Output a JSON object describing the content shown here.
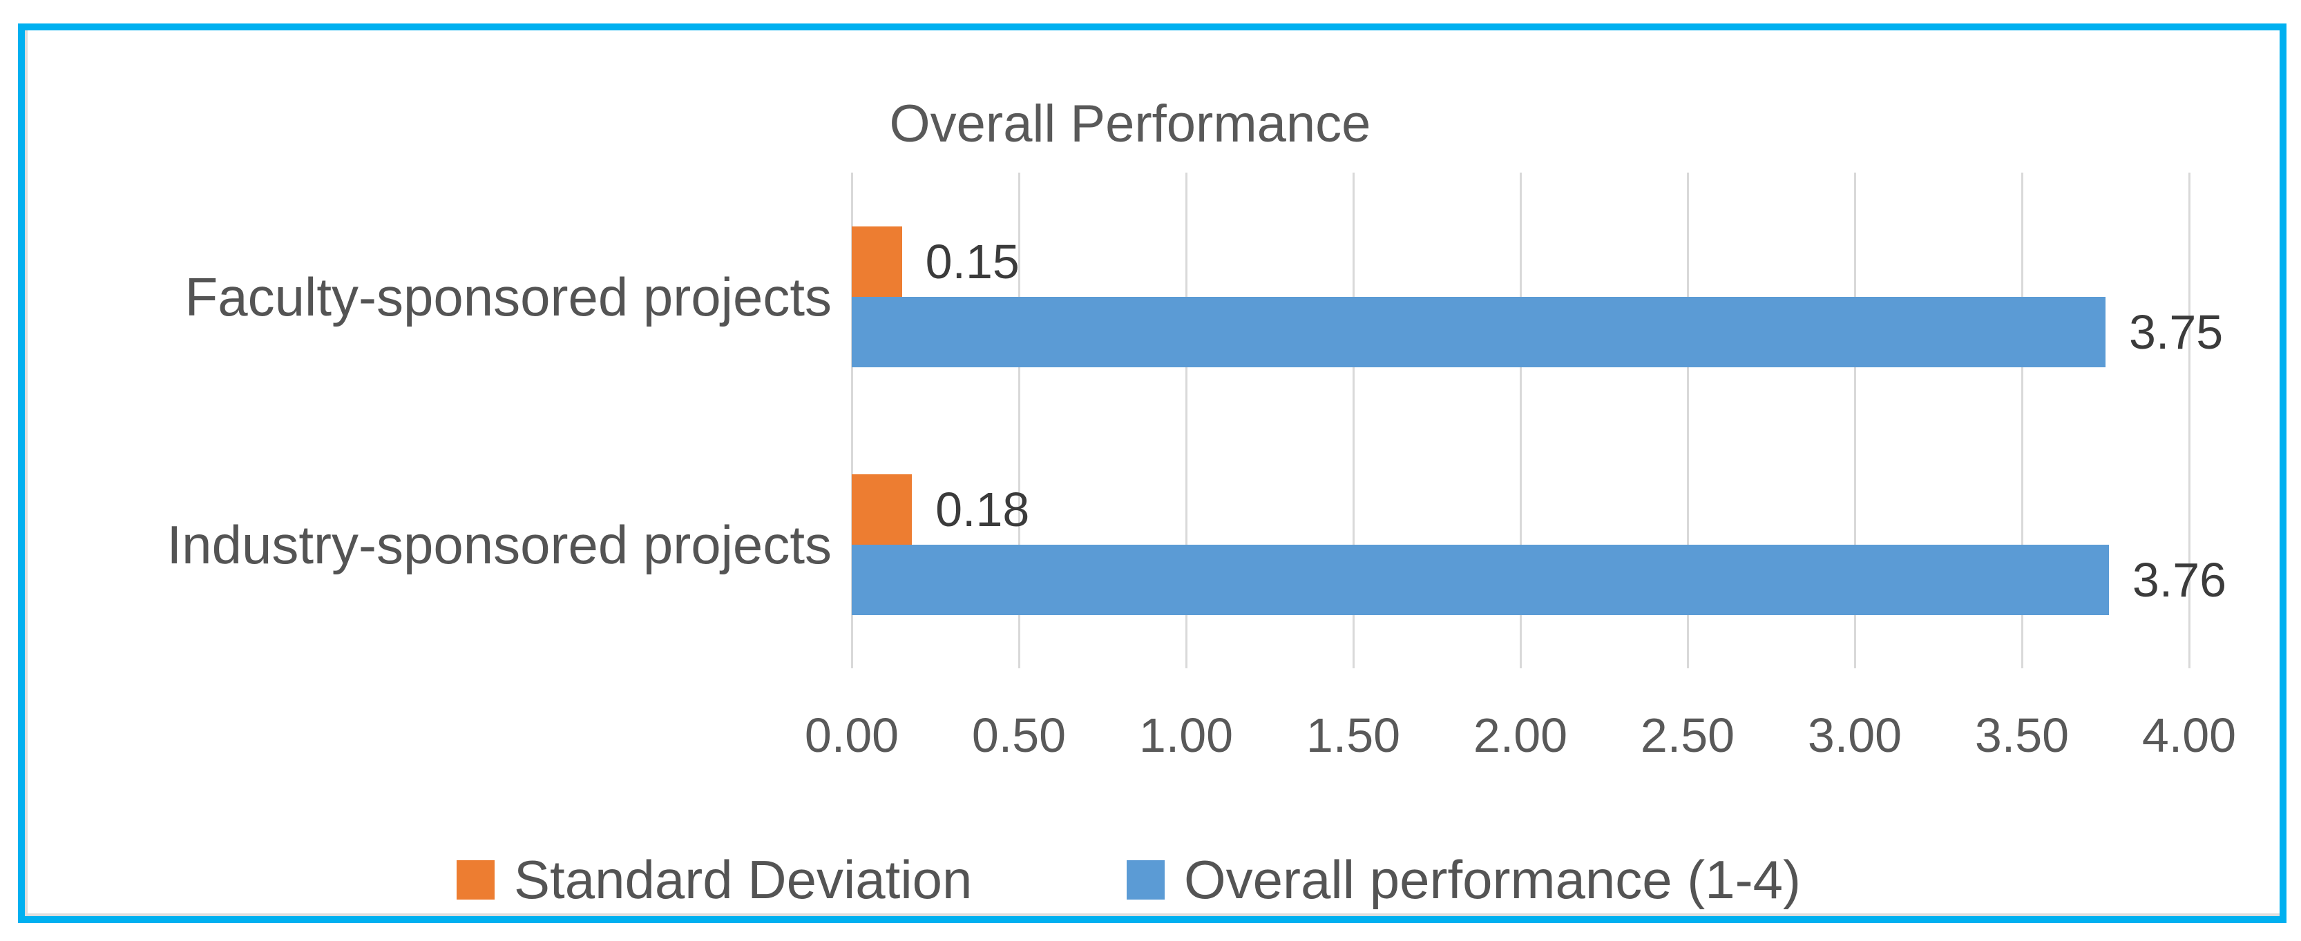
{
  "chart_data": {
    "type": "bar",
    "orientation": "horizontal",
    "title": "Overall Performance",
    "categories": [
      "Faculty-sponsored projects",
      "Industry-sponsored projects"
    ],
    "series": [
      {
        "name": "Standard Deviation",
        "color": "#ED7D31",
        "values": [
          0.15,
          0.18
        ],
        "data_labels": [
          "0.15",
          "0.18"
        ]
      },
      {
        "name": "Overall performance (1-4)",
        "color": "#5B9BD5",
        "values": [
          3.75,
          3.76
        ],
        "data_labels": [
          "3.75",
          "3.76"
        ]
      }
    ],
    "x_axis": {
      "min": 0,
      "max": 4,
      "step": 0.5,
      "tick_labels": [
        "0.00",
        "0.50",
        "1.00",
        "1.50",
        "2.00",
        "2.50",
        "3.00",
        "3.50",
        "4.00"
      ]
    },
    "grid": true,
    "legend_position": "bottom",
    "data_labels_shown": true
  },
  "style": {
    "frame_border_color": "#00B0F0",
    "grid_color": "#D9D9D9",
    "axis_text_color": "#595959",
    "data_label_color": "#3B3B3B",
    "background": "#FFFFFF"
  }
}
